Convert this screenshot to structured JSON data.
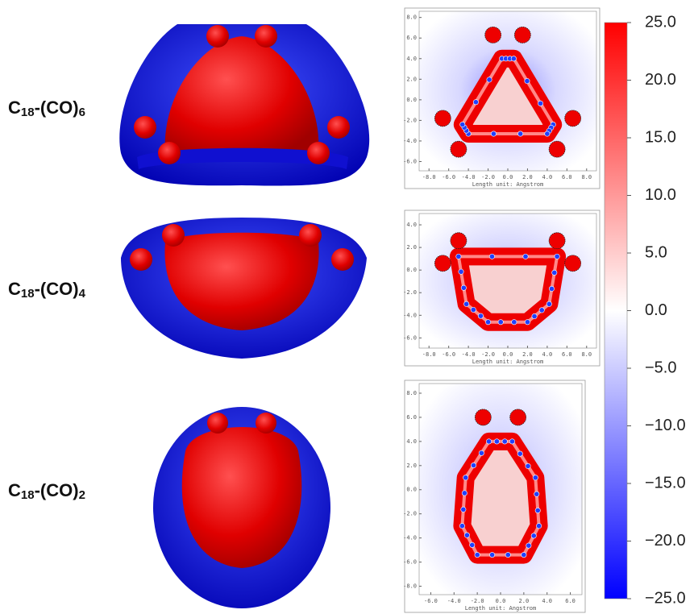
{
  "molecules": [
    {
      "base": "C",
      "sub": "18",
      "group": "-(CO)",
      "count": "6"
    },
    {
      "base": "C",
      "sub": "18",
      "group": "-(CO)",
      "count": "4"
    },
    {
      "base": "C",
      "sub": "18",
      "group": "-(CO)",
      "count": "2"
    }
  ],
  "maps": [
    {
      "axis_label": "Length unit: Angstrom",
      "xlim": [
        -9,
        9
      ],
      "ylim": [
        -6.9,
        8.6
      ],
      "xticks": [
        {
          "value": -8,
          "label": "-8.0"
        },
        {
          "value": -6,
          "label": "-6.0"
        },
        {
          "value": -4,
          "label": "-4.0"
        },
        {
          "value": -2,
          "label": "-2.0"
        },
        {
          "value": 0,
          "label": "0.0"
        },
        {
          "value": 2,
          "label": "2.0"
        },
        {
          "value": 4,
          "label": "4.0"
        },
        {
          "value": 6,
          "label": "6.0"
        },
        {
          "value": 8,
          "label": "8.0"
        }
      ],
      "yticks": [
        {
          "value": 8,
          "label": "8.0"
        },
        {
          "value": 6,
          "label": "6.0"
        },
        {
          "value": 4,
          "label": "4.0"
        },
        {
          "value": 2,
          "label": "2.0"
        },
        {
          "value": 0,
          "label": "0.0"
        },
        {
          "value": -2,
          "label": "-2.0"
        },
        {
          "value": -4,
          "label": "-4.0"
        },
        {
          "value": -6,
          "label": "-6.0"
        }
      ]
    },
    {
      "axis_label": "Length unit: Angstrom",
      "xlim": [
        -9,
        9
      ],
      "ylim": [
        -6.9,
        5.0
      ],
      "xticks": [
        {
          "value": -8,
          "label": "-8.0"
        },
        {
          "value": -6,
          "label": "-6.0"
        },
        {
          "value": -4,
          "label": "-4.0"
        },
        {
          "value": -2,
          "label": "-2.0"
        },
        {
          "value": 0,
          "label": "0.0"
        },
        {
          "value": 2,
          "label": "2.0"
        },
        {
          "value": 4,
          "label": "4.0"
        },
        {
          "value": 6,
          "label": "6.0"
        },
        {
          "value": 8,
          "label": "8.0"
        }
      ],
      "yticks": [
        {
          "value": 4,
          "label": "4.0"
        },
        {
          "value": 2,
          "label": "2.0"
        },
        {
          "value": 0,
          "label": "0.0"
        },
        {
          "value": -2,
          "label": "-2.0"
        },
        {
          "value": -4,
          "label": "-4.0"
        },
        {
          "value": -6,
          "label": "-6.0"
        }
      ]
    },
    {
      "axis_label": "Length unit: Angstrom",
      "xlim": [
        -7,
        7
      ],
      "ylim": [
        -8.7,
        8.8
      ],
      "xticks": [
        {
          "value": -6,
          "label": "-6.0"
        },
        {
          "value": -4,
          "label": "-4.0"
        },
        {
          "value": -2,
          "label": "-2.0"
        },
        {
          "value": 0,
          "label": "0.0"
        },
        {
          "value": 2,
          "label": "2.0"
        },
        {
          "value": 4,
          "label": "4.0"
        },
        {
          "value": 6,
          "label": "6.0"
        }
      ],
      "yticks": [
        {
          "value": 8,
          "label": "8.0"
        },
        {
          "value": 6,
          "label": "6.0"
        },
        {
          "value": 4,
          "label": "4.0"
        },
        {
          "value": 2,
          "label": "2.0"
        },
        {
          "value": 0,
          "label": "0.0"
        },
        {
          "value": -2,
          "label": "-2.0"
        },
        {
          "value": -4,
          "label": "-4.0"
        },
        {
          "value": -6,
          "label": "-6.0"
        },
        {
          "value": -8,
          "label": "-8.0"
        }
      ]
    }
  ],
  "colorbar": {
    "range": [
      -25,
      25
    ],
    "ticks": [
      {
        "value": 25,
        "label": "25.0"
      },
      {
        "value": 20,
        "label": "20.0"
      },
      {
        "value": 15,
        "label": "15.0"
      },
      {
        "value": 10,
        "label": "10.0"
      },
      {
        "value": 5,
        "label": "5.0"
      },
      {
        "value": 0,
        "label": "0.0"
      },
      {
        "value": -5,
        "label": "−5.0"
      },
      {
        "value": -10,
        "label": "−10.0"
      },
      {
        "value": -15,
        "label": "−15.0"
      },
      {
        "value": -20,
        "label": "−20.0"
      },
      {
        "value": -25,
        "label": "−25.0"
      }
    ]
  }
}
